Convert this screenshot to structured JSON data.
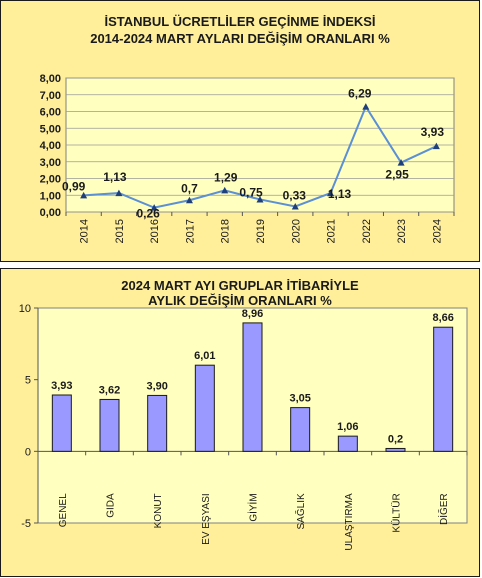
{
  "colors": {
    "panel_bg": "#ffef9a",
    "plot_bg": "#ffffbf",
    "line": "#5b8fd6",
    "marker": "#1f3f7a",
    "bar_fill": "#9999ff",
    "bar_stroke": "#1a1a1a"
  },
  "chart_data": [
    {
      "type": "line",
      "title": "İSTANBUL ÜCRETLİLER GEÇİNME İNDEKSİ",
      "subtitle": "2014-2024 MART AYLARI DEĞİŞİM ORANLARI %",
      "x": [
        "2014",
        "2015",
        "2016",
        "2017",
        "2018",
        "2019",
        "2020",
        "2021",
        "2022",
        "2023",
        "2024"
      ],
      "values": [
        0.99,
        1.13,
        0.26,
        0.7,
        1.29,
        0.75,
        0.33,
        1.13,
        6.29,
        2.95,
        3.93
      ],
      "data_labels": [
        "0,99",
        "1,13",
        "0,26",
        "0,7",
        "1,29",
        "0,75",
        "0,33",
        "1,13",
        "6,29",
        "2,95",
        "3,93"
      ],
      "ylim": [
        0,
        8
      ],
      "yticks": [
        "0,00",
        "1,00",
        "2,00",
        "3,00",
        "4,00",
        "5,00",
        "6,00",
        "7,00",
        "8,00"
      ],
      "grid": true,
      "legend": "none"
    },
    {
      "type": "bar",
      "title": "2024 MART AYI  GRUPLAR İTİBARİYLE",
      "subtitle": "AYLIK DEĞİŞİM  ORANLARI  %",
      "categories": [
        "GENEL",
        "GIDA",
        "KONUT",
        "EV EŞYASI",
        "GİYİM",
        "SAĞLIK",
        "ULAŞTIRMA",
        "KÜLTÜR",
        "DİĞER"
      ],
      "values": [
        3.93,
        3.62,
        3.9,
        6.01,
        8.96,
        3.05,
        1.06,
        0.2,
        8.66
      ],
      "data_labels": [
        "3,93",
        "3,62",
        "3,90",
        "6,01",
        "8,96",
        "3,05",
        "1,06",
        "0,2",
        "8,66"
      ],
      "ylim": [
        -5,
        10
      ],
      "yticks": [
        "-5",
        "0",
        "5",
        "10"
      ],
      "grid": false,
      "legend": "none"
    }
  ]
}
